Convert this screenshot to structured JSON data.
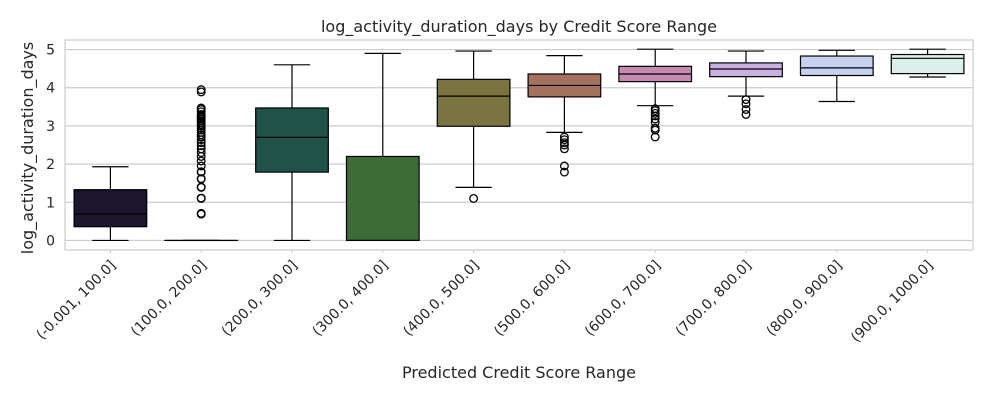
{
  "chart_data": {
    "type": "box",
    "title": "log_activity_duration_days by Credit Score Range",
    "xlabel": "Predicted Credit Score Range",
    "ylabel": "log_activity_duration_days",
    "ylim": [
      -0.25,
      5.25
    ],
    "yticks": [
      0,
      1,
      2,
      3,
      4,
      5
    ],
    "grid": true,
    "categories": [
      "(-0.001, 100.0]",
      "(100.0, 200.0]",
      "(200.0, 300.0]",
      "(300.0, 400.0]",
      "(400.0, 500.0]",
      "(500.0, 600.0]",
      "(600.0, 700.0]",
      "(700.0, 800.0]",
      "(800.0, 900.0]",
      "(900.0, 1000.0]"
    ],
    "boxes": [
      {
        "whisker_low": 0.0,
        "q1": 0.36,
        "median": 0.69,
        "q3": 1.33,
        "whisker_high": 1.93,
        "color": "#1b1530",
        "outliers": []
      },
      {
        "whisker_low": 0.0,
        "q1": 0.0,
        "median": 0.0,
        "q3": 0.0,
        "whisker_high": 0.0,
        "color": "#1b1530",
        "outliers": [
          0.69,
          0.71,
          1.1,
          1.11,
          1.39,
          1.4,
          1.61,
          1.62,
          1.79,
          1.8,
          1.95,
          2.08,
          2.2,
          2.3,
          2.4,
          2.48,
          2.56,
          2.64,
          2.71,
          2.77,
          2.83,
          2.89,
          2.94,
          3.0,
          3.04,
          3.09,
          3.14,
          3.18,
          3.22,
          3.26,
          3.3,
          3.37,
          3.43,
          3.47,
          3.89,
          3.95
        ]
      },
      {
        "whisker_low": 0.0,
        "q1": 1.79,
        "median": 2.7,
        "q3": 3.47,
        "whisker_high": 4.6,
        "color": "#1f5349",
        "outliers": []
      },
      {
        "whisker_low": 0.0,
        "q1": 0.0,
        "median": 0.0,
        "q3": 2.2,
        "whisker_high": 4.9,
        "color": "#3d6b38",
        "outliers": []
      },
      {
        "whisker_low": 1.39,
        "q1": 2.99,
        "median": 3.78,
        "q3": 4.22,
        "whisker_high": 4.96,
        "color": "#7a7440",
        "outliers": [
          1.1
        ]
      },
      {
        "whisker_low": 2.83,
        "q1": 3.76,
        "median": 4.06,
        "q3": 4.36,
        "whisker_high": 4.84,
        "color": "#a67260",
        "outliers": [
          1.79,
          1.95,
          2.4,
          2.5,
          2.56,
          2.64,
          2.71
        ]
      },
      {
        "whisker_low": 3.53,
        "q1": 4.16,
        "median": 4.36,
        "q3": 4.56,
        "whisker_high": 5.01,
        "color": "#c68ab2",
        "outliers": [
          2.71,
          2.89,
          2.94,
          3.09,
          3.18,
          3.26,
          3.33,
          3.4,
          3.45
        ]
      },
      {
        "whisker_low": 3.78,
        "q1": 4.29,
        "median": 4.49,
        "q3": 4.65,
        "whisker_high": 4.96,
        "color": "#c8b0e0",
        "outliers": [
          3.3,
          3.43,
          3.58,
          3.69
        ]
      },
      {
        "whisker_low": 3.64,
        "q1": 4.32,
        "median": 4.52,
        "q3": 4.83,
        "whisker_high": 4.98,
        "color": "#c5d1ef",
        "outliers": []
      },
      {
        "whisker_low": 4.28,
        "q1": 4.37,
        "median": 4.77,
        "q3": 4.87,
        "whisker_high": 5.01,
        "color": "#daeeea",
        "outliers": []
      }
    ]
  }
}
